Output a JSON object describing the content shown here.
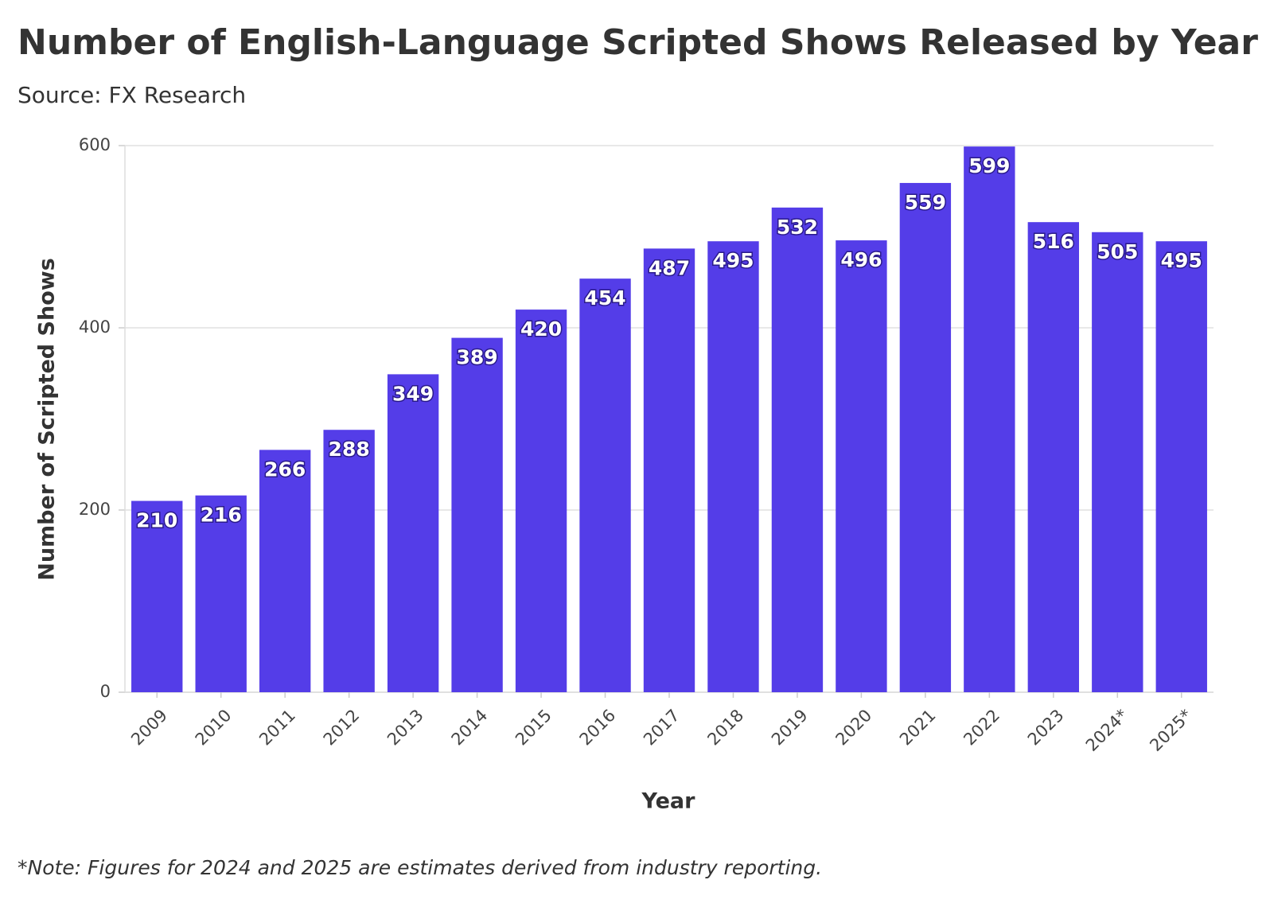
{
  "chart_data": {
    "type": "bar",
    "title": "Number of English-Language Scripted Shows Released by Year",
    "subtitle": "Source: FX Research",
    "x_label": "Year",
    "y_label": "Number of Scripted Shows",
    "note": "*Note: Figures for 2024 and 2025 are estimates derived from industry reporting.",
    "categories": [
      "2009",
      "2010",
      "2011",
      "2012",
      "2013",
      "2014",
      "2015",
      "2016",
      "2017",
      "2018",
      "2019",
      "2020",
      "2021",
      "2022",
      "2023",
      "2024*",
      "2025*"
    ],
    "values": [
      210,
      216,
      266,
      288,
      349,
      389,
      420,
      454,
      487,
      495,
      532,
      496,
      559,
      599,
      516,
      505,
      495
    ],
    "color": "#543de8",
    "ylim": [
      0,
      600
    ],
    "yticks": [
      0,
      200,
      400,
      600
    ],
    "grid": true
  }
}
